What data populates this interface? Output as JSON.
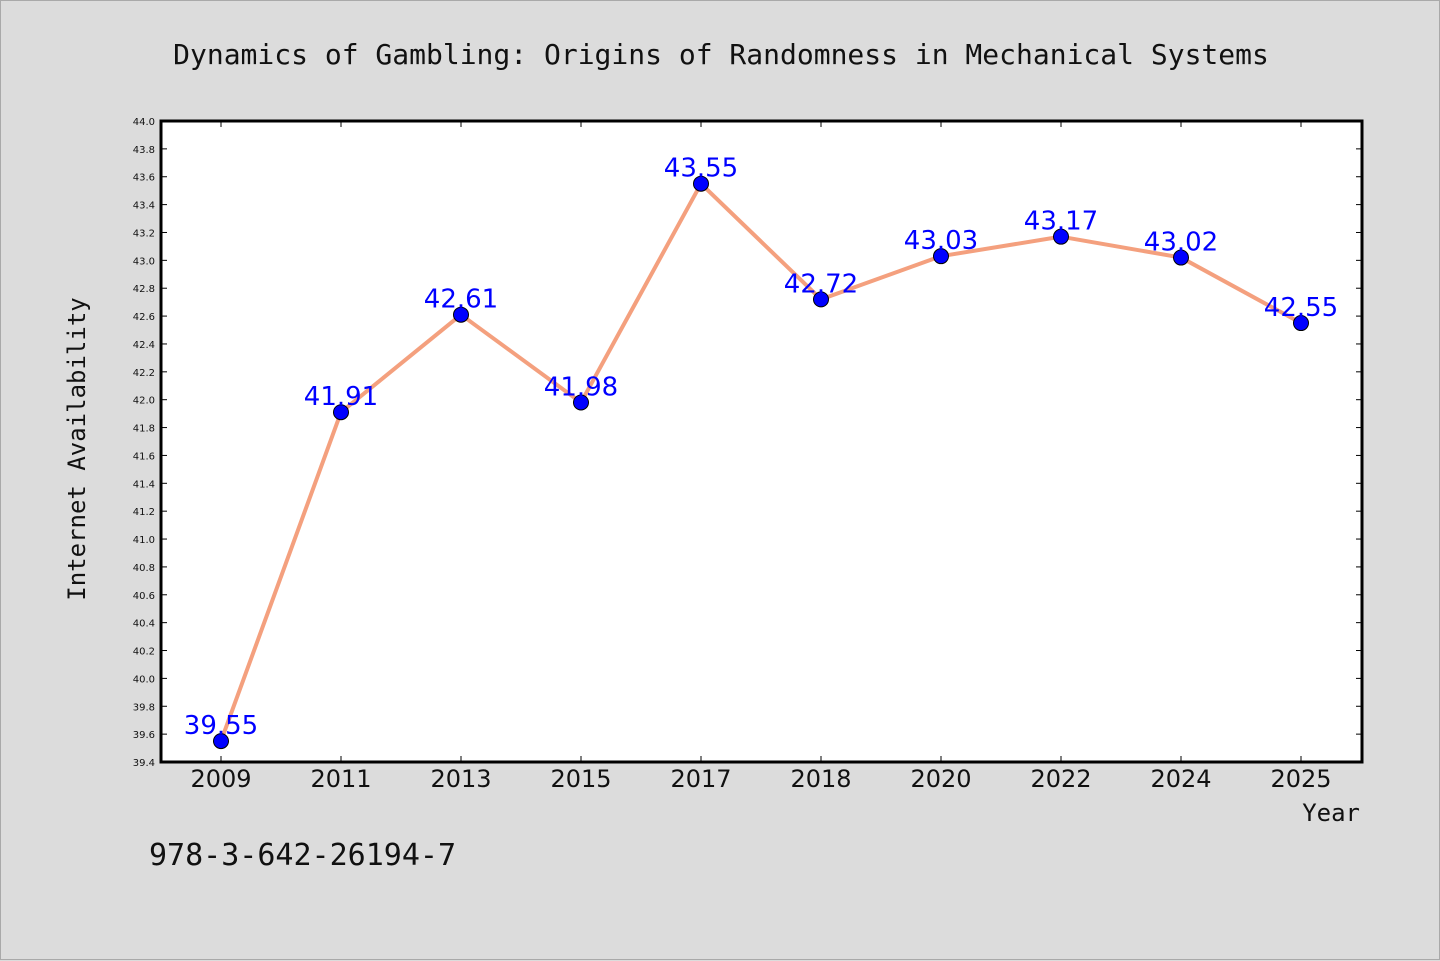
{
  "chart_data": {
    "type": "line",
    "title": "Dynamics of Gambling: Origins of Randomness in Mechanical Systems",
    "xlabel": "Year",
    "ylabel": "Internet Availability",
    "categories": [
      "2009",
      "2011",
      "2013",
      "2015",
      "2017",
      "2018",
      "2020",
      "2022",
      "2024",
      "2025"
    ],
    "values": [
      39.55,
      41.91,
      42.61,
      41.98,
      43.55,
      42.72,
      43.03,
      43.17,
      43.02,
      42.55
    ],
    "data_labels": [
      "39.55",
      "41.91",
      "42.61",
      "41.98",
      "43.55",
      "42.72",
      "43.03",
      "43.17",
      "43.02",
      "42.55"
    ],
    "ylim": [
      39.4,
      44.0
    ],
    "yticks": [
      "39.4",
      "39.6",
      "39.8",
      "40.0",
      "40.2",
      "40.4",
      "40.6",
      "40.8",
      "41.0",
      "41.2",
      "41.4",
      "41.6",
      "41.8",
      "42.0",
      "42.2",
      "42.4",
      "42.6",
      "42.8",
      "43.0",
      "43.2",
      "43.4",
      "43.6",
      "43.8",
      "44.0"
    ],
    "grid": false,
    "legend": "none",
    "colors": {
      "line": "#f4a07e",
      "marker": "#0000ff",
      "label": "#0000ff",
      "plot_background": "#ffffff",
      "page_background": "#dcdcdc"
    }
  },
  "footer": {
    "isbn": "978-3-642-26194-7"
  }
}
